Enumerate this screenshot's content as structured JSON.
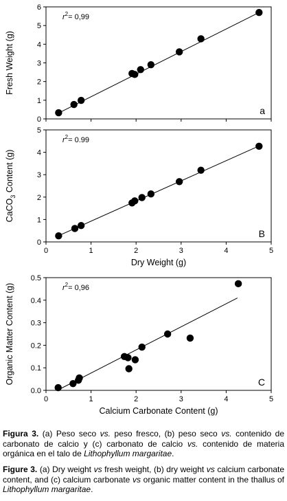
{
  "chart_data": [
    {
      "type": "scatter",
      "panel_label": "a",
      "ylabel": "Fresh Weight (g)",
      "xlabel": "",
      "annotation": {
        "r_symbol": "r",
        "r_exp": "2",
        "r_value": "= 0,99"
      },
      "xlim": [
        0,
        5
      ],
      "ylim": [
        0,
        6
      ],
      "xticks": [
        0,
        1,
        2,
        3,
        4,
        5
      ],
      "yticks": [
        0,
        1,
        2,
        3,
        4,
        5,
        6
      ],
      "show_xtick_labels": false,
      "points": [
        {
          "x": 0.28,
          "y": 0.33
        },
        {
          "x": 0.62,
          "y": 0.77
        },
        {
          "x": 0.78,
          "y": 0.99
        },
        {
          "x": 1.91,
          "y": 2.43
        },
        {
          "x": 1.97,
          "y": 2.38
        },
        {
          "x": 2.1,
          "y": 2.64
        },
        {
          "x": 2.33,
          "y": 2.9
        },
        {
          "x": 2.96,
          "y": 3.59
        },
        {
          "x": 3.44,
          "y": 4.29
        },
        {
          "x": 4.73,
          "y": 5.7
        }
      ],
      "fit": {
        "x": [
          0.25,
          4.75
        ],
        "y": [
          0.28,
          5.72
        ]
      },
      "grid": false
    },
    {
      "type": "scatter",
      "panel_label": "B",
      "ylabel_parts": [
        "CaCO",
        "3",
        " Content (g)"
      ],
      "xlabel": "Dry Weight (g)",
      "annotation": {
        "r_symbol": "r",
        "r_exp": "2",
        "r_value": "= 0.99"
      },
      "xlim": [
        0,
        5
      ],
      "ylim": [
        0,
        5
      ],
      "xticks": [
        0,
        1,
        2,
        3,
        4,
        5
      ],
      "yticks": [
        0,
        1,
        2,
        3,
        4,
        5
      ],
      "show_xtick_labels": true,
      "points": [
        {
          "x": 0.28,
          "y": 0.27
        },
        {
          "x": 0.64,
          "y": 0.6
        },
        {
          "x": 0.78,
          "y": 0.73
        },
        {
          "x": 1.91,
          "y": 1.74
        },
        {
          "x": 1.97,
          "y": 1.83
        },
        {
          "x": 2.13,
          "y": 1.98
        },
        {
          "x": 2.33,
          "y": 2.14
        },
        {
          "x": 2.96,
          "y": 2.69
        },
        {
          "x": 3.44,
          "y": 3.2
        },
        {
          "x": 4.73,
          "y": 4.27
        }
      ],
      "fit": {
        "x": [
          0.25,
          4.75
        ],
        "y": [
          0.25,
          4.3
        ]
      },
      "grid": false
    },
    {
      "type": "scatter",
      "panel_label": "C",
      "ylabel": "Organic Matter Content (g)",
      "xlabel": "Calcium Carbonate Content (g)",
      "annotation": {
        "r_symbol": "r",
        "r_exp": "2",
        "r_value": "= 0,96"
      },
      "xlim": [
        0,
        5
      ],
      "ylim": [
        0,
        0.5
      ],
      "xticks": [
        0,
        1,
        2,
        3,
        4,
        5
      ],
      "yticks": [
        0.0,
        0.1,
        0.2,
        0.3,
        0.4,
        0.5
      ],
      "ytick_labels": [
        "0.0",
        "0.1",
        "0.2",
        "0.3",
        "0.4",
        "0.5"
      ],
      "show_xtick_labels": true,
      "points": [
        {
          "x": 0.27,
          "y": 0.012
        },
        {
          "x": 0.6,
          "y": 0.03
        },
        {
          "x": 0.72,
          "y": 0.045
        },
        {
          "x": 0.74,
          "y": 0.055
        },
        {
          "x": 1.74,
          "y": 0.15
        },
        {
          "x": 1.82,
          "y": 0.145
        },
        {
          "x": 1.84,
          "y": 0.096
        },
        {
          "x": 1.98,
          "y": 0.136
        },
        {
          "x": 2.13,
          "y": 0.192
        },
        {
          "x": 2.7,
          "y": 0.25
        },
        {
          "x": 3.2,
          "y": 0.232
        },
        {
          "x": 4.27,
          "y": 0.473
        }
      ],
      "fit": {
        "x": [
          0.25,
          4.25
        ],
        "y": [
          0.0,
          0.41
        ]
      },
      "grid": false
    }
  ],
  "caption_es": {
    "label": "Figura 3.",
    "parts": [
      {
        "t": " (a) Peso seco ",
        "i": false
      },
      {
        "t": "vs.",
        "i": true
      },
      {
        "t": " peso fresco, (b) peso seco ",
        "i": false
      },
      {
        "t": "vs.",
        "i": true
      },
      {
        "t": " contenido de carbonato de calcio y (c) carbonato de calcio ",
        "i": false
      },
      {
        "t": "vs.",
        "i": true
      },
      {
        "t": " contenido de materia orgánica en el talo de ",
        "i": false
      },
      {
        "t": "Lithophyllum margaritae",
        "i": true
      },
      {
        "t": ".",
        "i": false
      }
    ]
  },
  "caption_en": {
    "label": "Figure 3.",
    "parts": [
      {
        "t": " (a) Dry weight ",
        "i": false
      },
      {
        "t": "vs",
        "i": true
      },
      {
        "t": " fresh weight, (b) dry weight ",
        "i": false
      },
      {
        "t": "vs",
        "i": true
      },
      {
        "t": " calcium carbonate content, and (c) calcium carbonate ",
        "i": false
      },
      {
        "t": "vs",
        "i": true
      },
      {
        "t": " organic matter content in the thallus of ",
        "i": false
      },
      {
        "t": "Lithophyllum margaritae",
        "i": true
      },
      {
        "t": ".",
        "i": false
      }
    ]
  }
}
